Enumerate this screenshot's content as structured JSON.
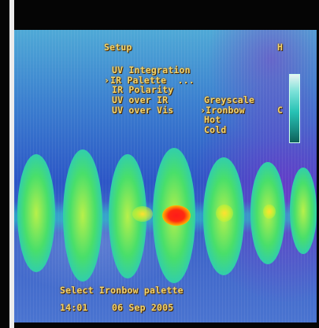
{
  "osd": {
    "menu_title": "Setup",
    "corner_h": "H",
    "corner_c": "C",
    "items": [
      "UV Integration",
      "IR Palette  ...",
      "IR Polarity",
      "UV over IR",
      "UV over Vis"
    ],
    "cursor": "›",
    "selected_item_index": 1,
    "palette_options": [
      "Greyscale",
      "Ironbow",
      "Hot",
      "Cold"
    ],
    "selected_palette_index": 1,
    "status_message": "Select Ironbow palette",
    "time": "14:01",
    "date": "06 Sep 2005"
  },
  "colors": {
    "osd_text": "#f2d46a",
    "background_cool": "#2c56c6",
    "hot_spot": "#ff1a1a"
  },
  "icons": [
    "palette-scale-bar"
  ]
}
